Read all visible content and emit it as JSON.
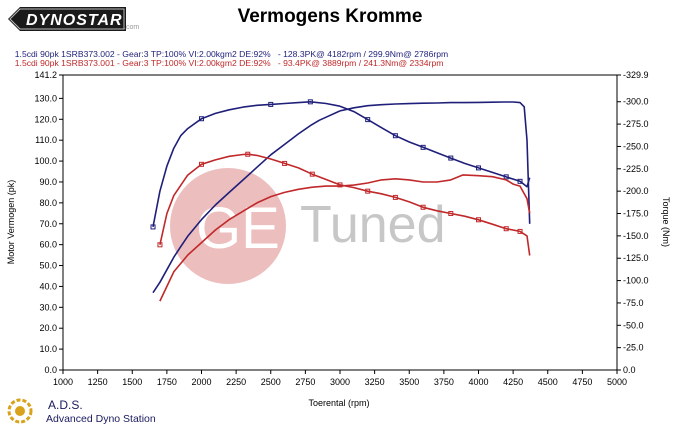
{
  "header": {
    "brand": "DYNOSTAR",
    "brand_suffix": ".com",
    "title": "Vermogens Kromme"
  },
  "runs": [
    {
      "label": "1.5cdi 90pk 1SRB373.002 - Gear:3 TP:100% VI:2.00kgm2 DE:92%",
      "summary": "- 128.3PK@ 4182rpm / 299.9Nm@ 2786rpm",
      "color": "#1f1f7a"
    },
    {
      "label": "1.5cdi 90pk 1SRB373.001 - Gear:3 TP:100% VI:2.00kgm2 DE:92%",
      "summary": "- 93.4PK@ 3889rpm / 241.3Nm@ 2334rpm",
      "color": "#c0282a"
    }
  ],
  "watermark": {
    "text": "Tuned",
    "prefix": "GE"
  },
  "footer": {
    "title": "A.D.S.",
    "subtitle": "Advanced Dyno Station"
  },
  "chart_data": {
    "type": "line",
    "title": "Vermogens Kromme",
    "xlabel": "Toerental (rpm)",
    "ylabel_left": "Motor Vermogen (pk)",
    "ylabel_right": "Torque (Nm)",
    "xlim": [
      1000,
      5000
    ],
    "ylim_left": [
      0.0,
      141.2
    ],
    "ylim_right": [
      0.0,
      329.9
    ],
    "x_ticks": [
      1000,
      1250,
      1500,
      1750,
      2000,
      2250,
      2500,
      2750,
      3000,
      3250,
      3500,
      3750,
      4000,
      4250,
      4500,
      4750,
      5000
    ],
    "y_ticks_left": [
      "0.0",
      "10.0",
      "20.0",
      "30.0",
      "40.0",
      "50.0",
      "60.0",
      "70.0",
      "80.0",
      "90.0",
      "100.0",
      "110.0",
      "120.0",
      "130.0",
      "141.2"
    ],
    "y_ticks_right": [
      "0.0",
      "-25.0",
      "-50.0",
      "-75.0",
      "-100.0",
      "-125.0",
      "-150.0",
      "-175.0",
      "-200.0",
      "-225.0",
      "-250.0",
      "-275.0",
      "-300.0",
      "-329.9"
    ],
    "y_tick_values_right": [
      0,
      25,
      50,
      75,
      100,
      125,
      150,
      175,
      200,
      225,
      250,
      275,
      300,
      329.9
    ],
    "grid": false,
    "series": [
      {
        "run": 0,
        "axis": "left",
        "quantity": "power",
        "color": "#1f1f7a",
        "x": [
          1650,
          1700,
          1750,
          1800,
          1850,
          1900,
          2000,
          2100,
          2200,
          2300,
          2400,
          2500,
          2600,
          2700,
          2786,
          2850,
          2900,
          3000
        ],
        "y": [
          37,
          42,
          48,
          54,
          59,
          64,
          72,
          79,
          85,
          91,
          97,
          103,
          108,
          113,
          117,
          119.5,
          121,
          124
        ],
        "markers": false
      },
      {
        "run": 0,
        "axis": "right",
        "quantity": "torque",
        "color": "#1f1f7a",
        "x": [
          1650,
          1700,
          1750,
          1800,
          1850,
          1900,
          2000,
          2100,
          2200,
          2300,
          2400,
          2500,
          2600,
          2700,
          2786,
          2900,
          3000
        ],
        "y": [
          160,
          200,
          228,
          248,
          262,
          270,
          281,
          287,
          291,
          294,
          296,
          297,
          298,
          299,
          299.9,
          298,
          295
        ],
        "markers": [
          1650,
          2000,
          2500,
          2786
        ]
      },
      {
        "run": 0,
        "axis": "left",
        "quantity": "power",
        "color": "#1f1f7a",
        "x": [
          3000,
          3100,
          3200,
          3300,
          3400,
          3500,
          3600,
          3700,
          3800,
          3900,
          4000,
          4100,
          4182,
          4250,
          4300,
          4330,
          4350,
          4370
        ],
        "y": [
          124,
          125.5,
          126.5,
          127,
          127.3,
          127.5,
          127.7,
          127.8,
          128,
          128,
          128.1,
          128.2,
          128.3,
          128.3,
          128,
          126,
          110,
          70
        ],
        "markers": false
      },
      {
        "run": 0,
        "axis": "right",
        "quantity": "torque",
        "color": "#1f1f7a",
        "x": [
          3000,
          3100,
          3200,
          3300,
          3400,
          3500,
          3600,
          3700,
          3800,
          3900,
          4000,
          4100,
          4200,
          4300,
          4350,
          4370
        ],
        "y": [
          295,
          289,
          280,
          271,
          262,
          255,
          249,
          243,
          237,
          231,
          226,
          221,
          216,
          211,
          205,
          215
        ],
        "markers": [
          3200,
          3400,
          3600,
          3800,
          4000,
          4200,
          4300
        ]
      },
      {
        "run": 1,
        "axis": "left",
        "quantity": "power",
        "color": "#c0282a",
        "x": [
          1700,
          1750,
          1800,
          1900,
          2000,
          2100,
          2200,
          2300,
          2400,
          2500,
          2600,
          2700,
          2800,
          2900,
          3000,
          3100,
          3200,
          3300,
          3400,
          3500,
          3600,
          3700,
          3800,
          3889,
          4000,
          4100,
          4200,
          4250,
          4300,
          4350,
          4370
        ],
        "y": [
          33,
          40,
          47,
          55,
          61,
          67,
          72,
          76,
          80,
          83,
          85,
          86.5,
          87.5,
          88,
          88,
          88.5,
          89.5,
          91,
          91.5,
          91,
          90,
          90,
          91,
          93.4,
          93,
          92.5,
          91,
          89,
          88,
          82,
          75
        ],
        "markers": false
      },
      {
        "run": 1,
        "axis": "right",
        "quantity": "torque",
        "color": "#c0282a",
        "x": [
          1700,
          1750,
          1800,
          1900,
          2000,
          2100,
          2200,
          2300,
          2334,
          2400,
          2500,
          2600,
          2700,
          2800,
          2900,
          3000,
          3100,
          3200,
          3300,
          3400,
          3500,
          3600,
          3700,
          3800,
          3900,
          4000,
          4100,
          4200,
          4300,
          4350,
          4370
        ],
        "y": [
          140,
          175,
          195,
          218,
          230,
          235,
          239,
          241,
          241.3,
          240,
          236,
          231,
          226,
          219,
          213,
          207,
          204,
          200,
          197,
          193,
          188,
          182,
          178,
          175,
          172,
          168,
          163,
          158,
          155,
          150,
          128
        ],
        "markers": [
          1700,
          2000,
          2334,
          2600,
          2800,
          3000,
          3200,
          3400,
          3600,
          3800,
          4000,
          4200,
          4300
        ]
      }
    ]
  }
}
